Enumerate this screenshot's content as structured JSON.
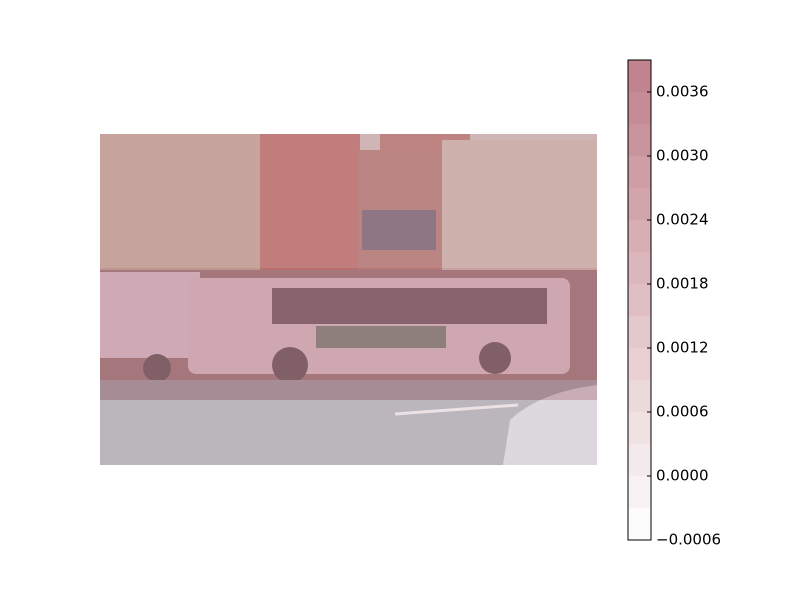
{
  "chart_data": {
    "type": "heatmap",
    "z": [
      [
        0.0024
      ],
      [
        0.0033
      ],
      [
        0.0006
      ]
    ],
    "clim": [
      -0.0006,
      0.0039
    ],
    "levels": [
      -0.0006,
      -0.0003,
      0.0,
      0.0003,
      0.0006,
      0.0009,
      0.0012,
      0.0015,
      0.0018,
      0.0021,
      0.0024,
      0.0027,
      0.003,
      0.0033,
      0.0036,
      0.0039
    ],
    "colormap": [
      "#ffffff",
      "#bf7f89"
    ],
    "cticks": [
      {
        "value": -0.0006,
        "label": "−0.0006"
      },
      {
        "value": 0.0,
        "label": "0.0000"
      },
      0.0006,
      0.0012,
      0.0018,
      0.0024,
      {
        "value": 0.003,
        "label": "0.0030"
      },
      0.0036
    ]
  }
}
